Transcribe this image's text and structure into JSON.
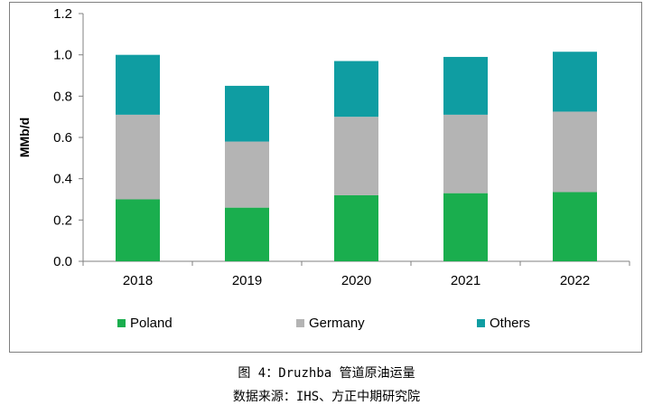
{
  "chart_data": {
    "type": "bar",
    "stacked": true,
    "categories": [
      "2018",
      "2019",
      "2020",
      "2021",
      "2022"
    ],
    "series": [
      {
        "name": "Poland",
        "color": "#1aae4e",
        "values": [
          0.3,
          0.26,
          0.32,
          0.33,
          0.335
        ]
      },
      {
        "name": "Germany",
        "color": "#b4b4b4",
        "values": [
          0.41,
          0.32,
          0.38,
          0.38,
          0.39
        ]
      },
      {
        "name": "Others",
        "color": "#0f9da2",
        "values": [
          0.29,
          0.27,
          0.27,
          0.28,
          0.29
        ]
      }
    ],
    "ylabel": "MMb/d",
    "ylim": [
      0,
      1.2
    ],
    "yticks": [
      "0.0",
      "0.2",
      "0.4",
      "0.6",
      "0.8",
      "1.0",
      "1.2"
    ],
    "grid": false,
    "legend_position": "bottom"
  },
  "captions": {
    "figure_title": "图 4：Druzhba 管道原油运量",
    "source": "数据来源：IHS、方正中期研究院"
  }
}
